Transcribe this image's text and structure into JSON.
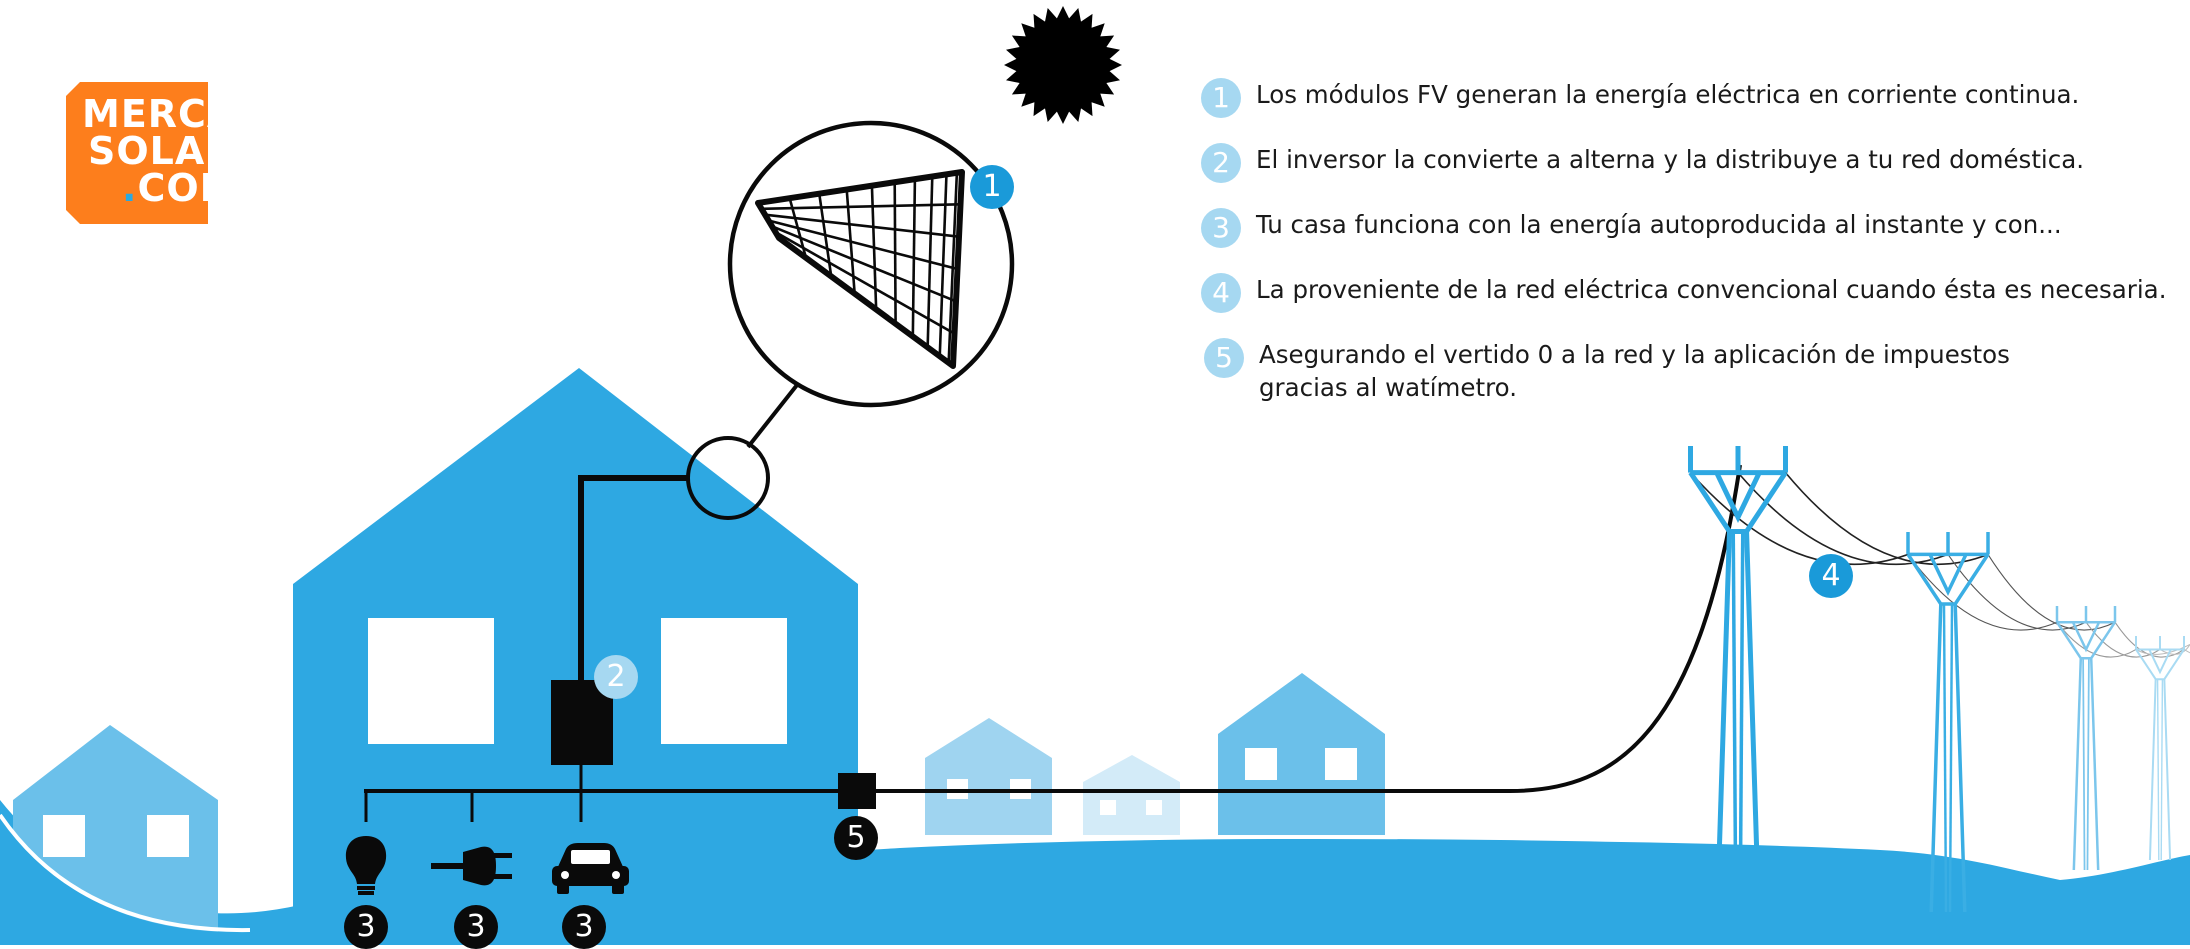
{
  "logo": {
    "line1": "MERCA",
    "line2": "SOLAR",
    "line3_dot": ".",
    "line3": "COM"
  },
  "legend": [
    {
      "num": "1",
      "text": "Los módulos FV generan la energía eléctrica en corriente continua."
    },
    {
      "num": "2",
      "text": "El inversor la convierte a alterna y la distribuye a tu red doméstica."
    },
    {
      "num": "3",
      "text": "Tu casa funciona con la energía autoproducida al instante y con..."
    },
    {
      "num": "4",
      "text": "La proveniente de la red eléctrica convencional cuando ésta es necesaria."
    },
    {
      "num": "5",
      "text": "Asegurando el vertido 0 a la red y la aplicación de impuestos",
      "text2": "gracias al watímetro."
    }
  ],
  "badges": {
    "panel": "1",
    "inverter": "2",
    "bulb": "3",
    "plug": "3",
    "car": "3",
    "grid": "4",
    "meter": "5"
  },
  "icons": {
    "sun": "sun-icon",
    "panel": "solar-panel-icon",
    "bulb": "light-bulb-icon",
    "plug": "plug-icon",
    "car": "car-icon",
    "tower": "power-tower-icon"
  },
  "colors": {
    "primary_blue": "#2ea8e2",
    "light_blue": "#a6d8f1",
    "badge_blue": "#1a9ad9",
    "logo_orange": "#fd7e1c",
    "line_black": "#0a0a0a"
  }
}
